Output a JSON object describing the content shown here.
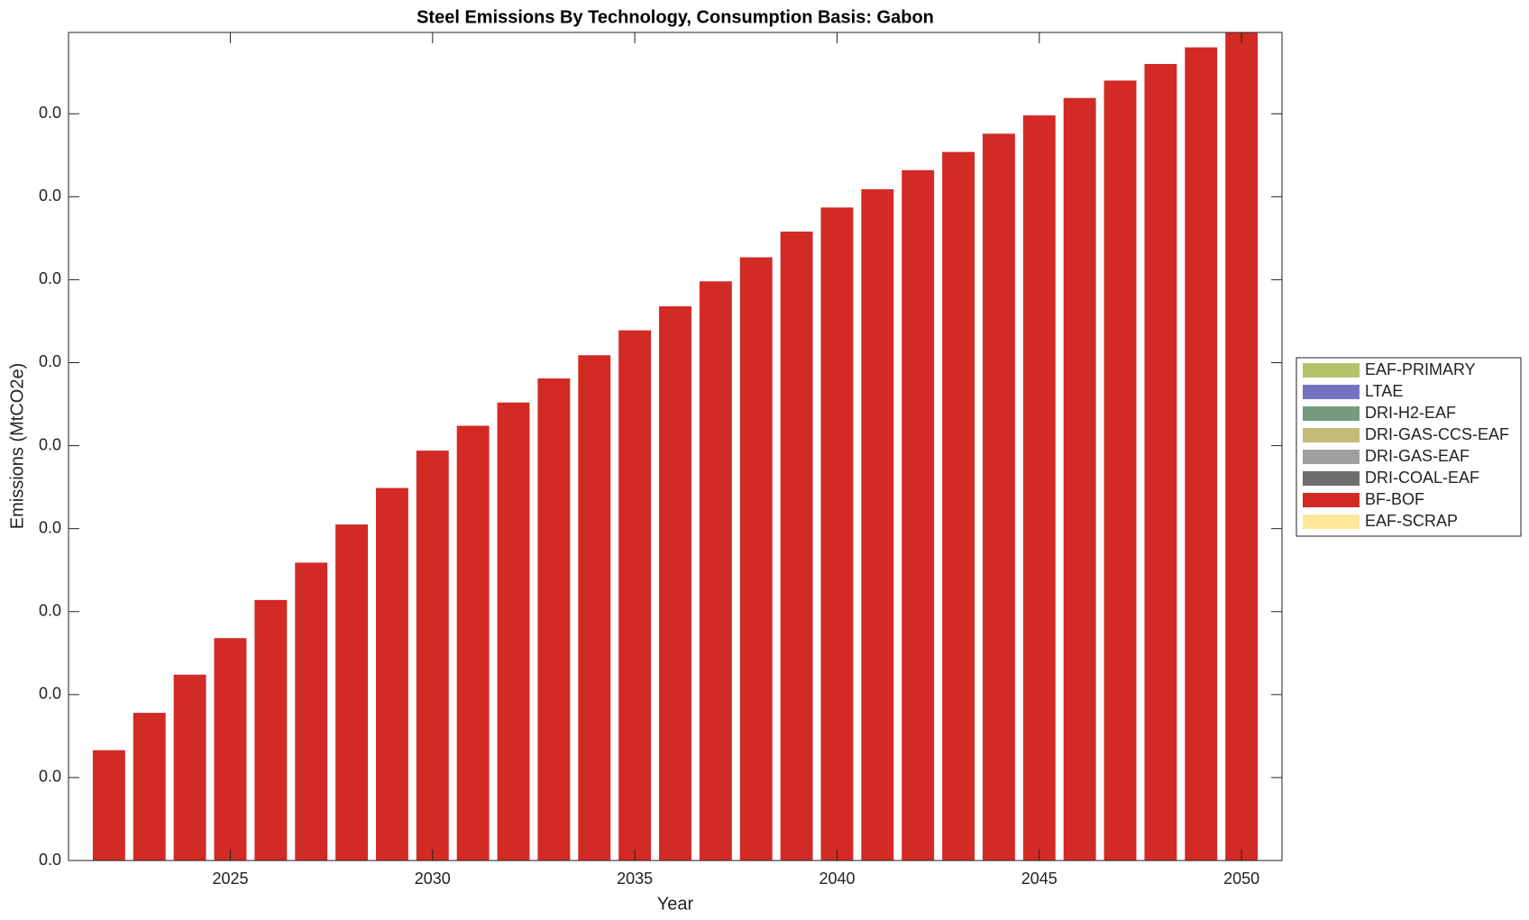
{
  "chart_data": {
    "type": "stacked_bar",
    "title": "Steel Emissions By Technology, Consumption Basis: Gabon",
    "x_label": "Year",
    "y_label": "Emissions (MtCO2e)",
    "x": [
      2022,
      2023,
      2024,
      2025,
      2026,
      2027,
      2028,
      2029,
      2030,
      2031,
      2032,
      2033,
      2034,
      2035,
      2036,
      2037,
      2038,
      2039,
      2040,
      2041,
      2042,
      2043,
      2044,
      2045,
      2046,
      2047,
      2048,
      2049,
      2050
    ],
    "xlim": [
      2021,
      2051
    ],
    "xticks": [
      2025,
      2030,
      2035,
      2040,
      2045,
      2050
    ],
    "ylim": [
      0,
      0.0998
    ],
    "yticks": [
      {
        "value": 0,
        "label": "0.0"
      },
      {
        "value": 0.01,
        "label": "0.0"
      },
      {
        "value": 0.02,
        "label": "0.0"
      },
      {
        "value": 0.03,
        "label": "0.0"
      },
      {
        "value": 0.04,
        "label": "0.0"
      },
      {
        "value": 0.05,
        "label": "0.0"
      },
      {
        "value": 0.06,
        "label": "0.0"
      },
      {
        "value": 0.07,
        "label": "0.0"
      },
      {
        "value": 0.08,
        "label": "0.0"
      },
      {
        "value": 0.09,
        "label": "0.0"
      }
    ],
    "legend": "outside-right",
    "series": [
      {
        "name": "EAF-PRIMARY",
        "color": "#b5c46a",
        "values": [
          0,
          0,
          0,
          0,
          0,
          0,
          0,
          0,
          0,
          0,
          0,
          0,
          0,
          0,
          0,
          0,
          0,
          0,
          0,
          0,
          0,
          0,
          0,
          0,
          0,
          0,
          0,
          0,
          0
        ]
      },
      {
        "name": "LTAE",
        "color": "#7373c0",
        "values": [
          0,
          0,
          0,
          0,
          0,
          0,
          0,
          0,
          0,
          0,
          0,
          0,
          0,
          0,
          0,
          0,
          0,
          0,
          0,
          0,
          0,
          0,
          0,
          0,
          0,
          0,
          0,
          0,
          0
        ]
      },
      {
        "name": "DRI-H2-EAF",
        "color": "#769a7e",
        "values": [
          0,
          0,
          0,
          0,
          0,
          0,
          0,
          0,
          0,
          0,
          0,
          0,
          0,
          0,
          0,
          0,
          0,
          0,
          0,
          0,
          0,
          0,
          0,
          0,
          0,
          0,
          0,
          0,
          0
        ]
      },
      {
        "name": "DRI-GAS-CCS-EAF",
        "color": "#c2bb7a",
        "values": [
          0,
          0,
          0,
          0,
          0,
          0,
          0,
          0,
          0,
          0,
          0,
          0,
          0,
          0,
          0,
          0,
          0,
          0,
          0,
          0,
          0,
          0,
          0,
          0,
          0,
          0,
          0,
          0,
          0
        ]
      },
      {
        "name": "DRI-GAS-EAF",
        "color": "#a0a0a0",
        "values": [
          0,
          0,
          0,
          0,
          0,
          0,
          0,
          0,
          0,
          0,
          0,
          0,
          0,
          0,
          0,
          0,
          0,
          0,
          0,
          0,
          0,
          0,
          0,
          0,
          0,
          0,
          0,
          0,
          0
        ]
      },
      {
        "name": "DRI-COAL-EAF",
        "color": "#6e6e6e",
        "values": [
          0,
          0,
          0,
          0,
          0,
          0,
          0,
          0,
          0,
          0,
          0,
          0,
          0,
          0,
          0,
          0,
          0,
          0,
          0,
          0,
          0,
          0,
          0,
          0,
          0,
          0,
          0,
          0,
          0
        ]
      },
      {
        "name": "BF-BOF",
        "color": "#d22a25",
        "values": [
          0.0133,
          0.0178,
          0.0224,
          0.0268,
          0.0314,
          0.0359,
          0.0405,
          0.0449,
          0.0494,
          0.0524,
          0.0552,
          0.0581,
          0.0609,
          0.0639,
          0.0668,
          0.0698,
          0.0727,
          0.0758,
          0.0787,
          0.0809,
          0.0832,
          0.0854,
          0.0876,
          0.0898,
          0.0919,
          0.094,
          0.096,
          0.098,
          0.0998
        ]
      },
      {
        "name": "EAF-SCRAP",
        "color": "#fde89a",
        "values": [
          0,
          0,
          0,
          0,
          0,
          0,
          0,
          0,
          0,
          0,
          0,
          0,
          0,
          0,
          0,
          0,
          0,
          0,
          0,
          0,
          0,
          0,
          0,
          0,
          0,
          0,
          0,
          0,
          0
        ]
      }
    ]
  }
}
